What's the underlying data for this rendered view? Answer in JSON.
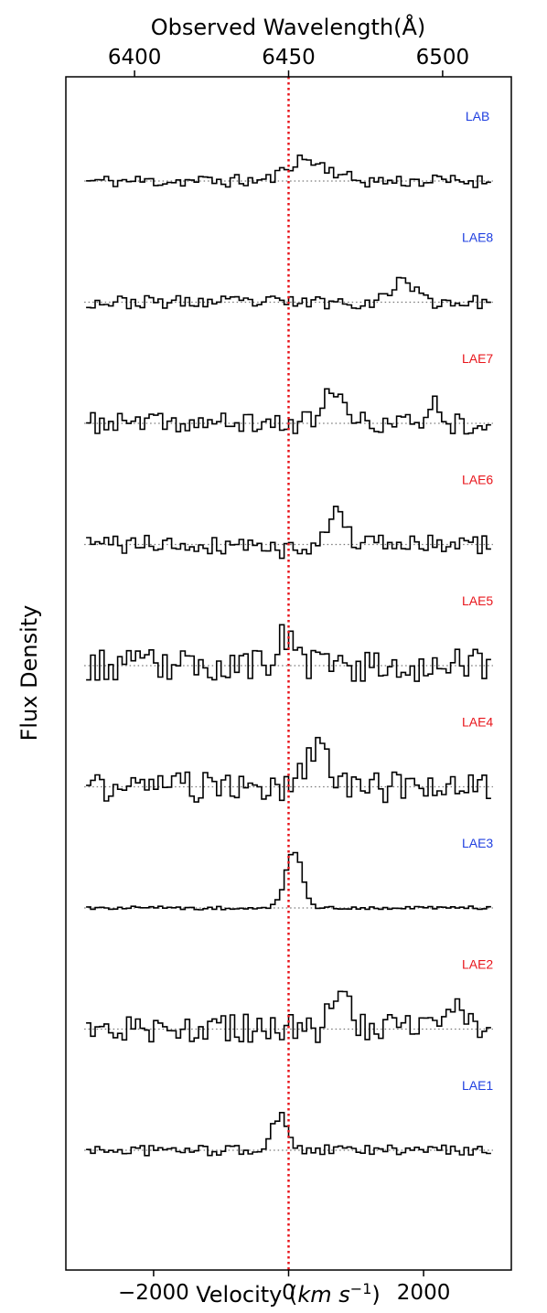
{
  "chart_data": {
    "type": "line",
    "drawstyle": "steps",
    "xlabel": "Velocity (km s⁻¹)",
    "xlabel_parts": {
      "prefix": "Velocity (",
      "italic": "km s",
      "sup": "−1",
      "suffix": ")"
    },
    "ylabel": "Flux Density",
    "top_xlabel": "Observed Wavelength(Å)",
    "xlim": [
      -3300,
      3300
    ],
    "xticks": [
      -2000,
      0,
      2000
    ],
    "xtick_labels": [
      "−2000",
      "0",
      "2000"
    ],
    "top_xticks": [
      6400,
      6450,
      6500
    ],
    "top_xtick_labels": [
      "6400",
      "6450",
      "6500"
    ],
    "top_axis_reference": {
      "wavelength": 6450,
      "velocity": 0
    },
    "top_axis_angstrom_per_kms": 0.02191,
    "vline": {
      "x": 0,
      "color": "#e8151b",
      "style": "dotted"
    },
    "baseline_style": "dotted gray",
    "grid": false,
    "series": [
      {
        "name": "LAB",
        "color": "#1f3fe0",
        "label_x": 2800,
        "scale": 1.6,
        "seed": 11,
        "features": [
          {
            "center": 180,
            "width": 220,
            "amp": 1.0
          },
          {
            "center": 600,
            "width": 200,
            "amp": 0.45
          }
        ]
      },
      {
        "name": "LAE8",
        "color": "#1f3fe0",
        "label_x": 2800,
        "scale": 1.6,
        "seed": 23,
        "features": [
          {
            "center": 1700,
            "width": 160,
            "amp": 1.15
          }
        ]
      },
      {
        "name": "LAE7",
        "color": "#e8151b",
        "label_x": 2800,
        "scale": 2.6,
        "seed": 37,
        "features": [
          {
            "center": 650,
            "width": 160,
            "amp": 0.9
          },
          {
            "center": 2150,
            "width": 100,
            "amp": 0.6
          }
        ]
      },
      {
        "name": "LAE6",
        "color": "#e8151b",
        "label_x": 2800,
        "scale": 2.4,
        "seed": 41,
        "features": [
          {
            "center": 700,
            "width": 140,
            "amp": 1.0
          },
          {
            "center": -100,
            "width": 80,
            "amp": -0.3
          }
        ]
      },
      {
        "name": "LAE5",
        "color": "#e8151b",
        "label_x": 2800,
        "scale": 4.0,
        "seed": 53,
        "features": [
          {
            "center": -50,
            "width": 120,
            "amp": 0.6
          }
        ]
      },
      {
        "name": "LAE4",
        "color": "#e8151b",
        "label_x": 2800,
        "scale": 3.8,
        "seed": 61,
        "features": [
          {
            "center": 400,
            "width": 160,
            "amp": 0.8
          }
        ]
      },
      {
        "name": "LAE3",
        "color": "#1f3fe0",
        "label_x": 2800,
        "scale": 0.45,
        "seed": 71,
        "features": [
          {
            "center": 80,
            "width": 120,
            "amp": 10.0
          }
        ]
      },
      {
        "name": "LAE2",
        "color": "#e8151b",
        "label_x": 2800,
        "scale": 3.6,
        "seed": 83,
        "features": [
          {
            "center": 780,
            "width": 130,
            "amp": 0.9
          },
          {
            "center": 2400,
            "width": 120,
            "amp": 0.7
          }
        ]
      },
      {
        "name": "LAE1",
        "color": "#1f3fe0",
        "label_x": 2800,
        "scale": 1.3,
        "seed": 97,
        "features": [
          {
            "center": -120,
            "width": 110,
            "amp": 2.2
          }
        ]
      }
    ]
  }
}
